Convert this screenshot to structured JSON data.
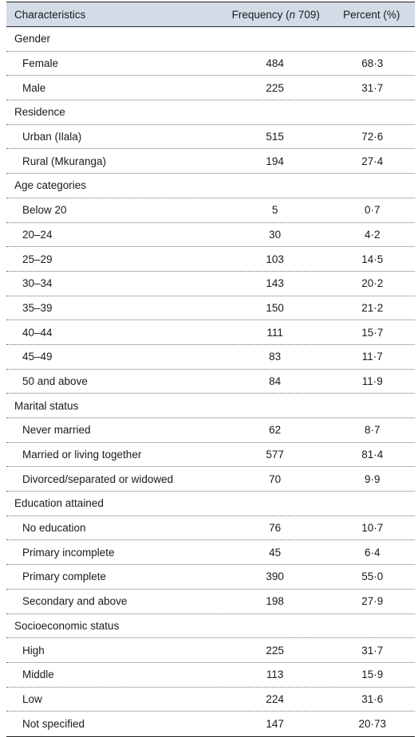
{
  "header": {
    "characteristics": "Characteristics",
    "frequency_prefix": "Frequency (",
    "frequency_n": "n",
    "frequency_suffix": " 709)",
    "percent": "Percent (%)"
  },
  "rows": [
    {
      "type": "category",
      "label": "Gender",
      "frequency": "",
      "percent": ""
    },
    {
      "type": "sub",
      "label": "Female",
      "frequency": "484",
      "percent": "68·3"
    },
    {
      "type": "sub",
      "label": "Male",
      "frequency": "225",
      "percent": "31·7"
    },
    {
      "type": "category",
      "label": "Residence",
      "frequency": "",
      "percent": ""
    },
    {
      "type": "sub",
      "label": "Urban (Ilala)",
      "frequency": "515",
      "percent": "72·6"
    },
    {
      "type": "sub",
      "label": "Rural (Mkuranga)",
      "frequency": "194",
      "percent": "27·4"
    },
    {
      "type": "category",
      "label": "Age categories",
      "frequency": "",
      "percent": ""
    },
    {
      "type": "sub",
      "label": "Below 20",
      "frequency": "5",
      "percent": "0·7"
    },
    {
      "type": "sub",
      "label": "20–24",
      "frequency": "30",
      "percent": "4·2"
    },
    {
      "type": "sub",
      "label": "25–29",
      "frequency": "103",
      "percent": "14·5"
    },
    {
      "type": "sub",
      "label": "30–34",
      "frequency": "143",
      "percent": "20·2"
    },
    {
      "type": "sub",
      "label": "35–39",
      "frequency": "150",
      "percent": "21·2"
    },
    {
      "type": "sub",
      "label": "40–44",
      "frequency": "111",
      "percent": "15·7"
    },
    {
      "type": "sub",
      "label": "45–49",
      "frequency": "83",
      "percent": "11·7"
    },
    {
      "type": "sub",
      "label": "50 and above",
      "frequency": "84",
      "percent": "11·9"
    },
    {
      "type": "category",
      "label": "Marital status",
      "frequency": "",
      "percent": ""
    },
    {
      "type": "sub",
      "label": "Never married",
      "frequency": "62",
      "percent": "8·7"
    },
    {
      "type": "sub",
      "label": "Married or living together",
      "frequency": "577",
      "percent": "81·4"
    },
    {
      "type": "sub",
      "label": "Divorced/separated or widowed",
      "frequency": "70",
      "percent": "9·9"
    },
    {
      "type": "category",
      "label": "Education attained",
      "frequency": "",
      "percent": ""
    },
    {
      "type": "sub",
      "label": "No education",
      "frequency": "76",
      "percent": "10·7"
    },
    {
      "type": "sub",
      "label": "Primary incomplete",
      "frequency": "45",
      "percent": "6·4"
    },
    {
      "type": "sub",
      "label": "Primary complete",
      "frequency": "390",
      "percent": "55·0"
    },
    {
      "type": "sub",
      "label": "Secondary and above",
      "frequency": "198",
      "percent": "27·9"
    },
    {
      "type": "category",
      "label": "Socioeconomic status",
      "frequency": "",
      "percent": ""
    },
    {
      "type": "sub",
      "label": "High",
      "frequency": "225",
      "percent": "31·7"
    },
    {
      "type": "sub",
      "label": "Middle",
      "frequency": "113",
      "percent": "15·9"
    },
    {
      "type": "sub",
      "label": "Low",
      "frequency": "224",
      "percent": "31·6"
    },
    {
      "type": "sub",
      "label": "Not specified",
      "frequency": "147",
      "percent": "20·73"
    }
  ]
}
